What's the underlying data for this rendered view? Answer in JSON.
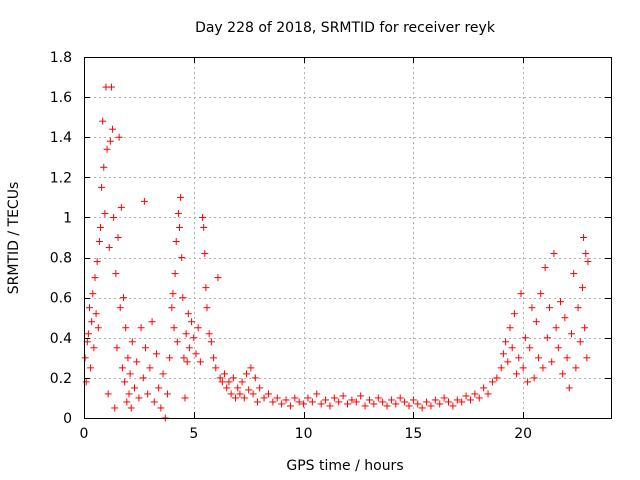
{
  "chart_data": {
    "type": "scatter",
    "title": "Day 228 of 2018, SRMTID for receiver reyk",
    "xlabel": "GPS time / hours",
    "ylabel": "SRMTID / TECUs",
    "xlim": [
      0,
      24
    ],
    "ylim": [
      0,
      1.8
    ],
    "xticks": [
      0,
      5,
      10,
      15,
      20
    ],
    "xtick_labels": [
      "0",
      "5",
      "10",
      "15",
      "20"
    ],
    "yticks": [
      0,
      0.2,
      0.4,
      0.6,
      0.8,
      1.0,
      1.2,
      1.4,
      1.6,
      1.8
    ],
    "ytick_labels": [
      "0",
      "0.2",
      "0.4",
      "0.6",
      "0.8",
      "1",
      "1.2",
      "1.4",
      "1.6",
      "1.8"
    ],
    "grid": true,
    "marker": "+",
    "marker_color": "#ff0000",
    "series": [
      {
        "name": "SRMTID",
        "points": [
          [
            0.05,
            0.3
          ],
          [
            0.1,
            0.18
          ],
          [
            0.15,
            0.38
          ],
          [
            0.2,
            0.42
          ],
          [
            0.25,
            0.55
          ],
          [
            0.3,
            0.25
          ],
          [
            0.35,
            0.48
          ],
          [
            0.4,
            0.62
          ],
          [
            0.45,
            0.35
          ],
          [
            0.5,
            0.7
          ],
          [
            0.55,
            0.52
          ],
          [
            0.6,
            0.78
          ],
          [
            0.65,
            0.45
          ],
          [
            0.7,
            0.88
          ],
          [
            0.75,
            0.95
          ],
          [
            0.8,
            1.15
          ],
          [
            0.85,
            1.48
          ],
          [
            0.9,
            1.25
          ],
          [
            0.95,
            1.02
          ],
          [
            1.0,
            1.65
          ],
          [
            1.05,
            1.34
          ],
          [
            1.1,
            0.12
          ],
          [
            1.15,
            0.85
          ],
          [
            1.2,
            1.38
          ],
          [
            1.25,
            1.65
          ],
          [
            1.3,
            1.44
          ],
          [
            1.35,
            1.0
          ],
          [
            1.4,
            0.05
          ],
          [
            1.45,
            0.72
          ],
          [
            1.5,
            0.35
          ],
          [
            1.55,
            0.9
          ],
          [
            1.6,
            1.4
          ],
          [
            1.65,
            0.55
          ],
          [
            1.7,
            1.05
          ],
          [
            1.75,
            0.25
          ],
          [
            1.8,
            0.6
          ],
          [
            1.85,
            0.18
          ],
          [
            1.9,
            0.45
          ],
          [
            1.95,
            0.08
          ],
          [
            2.0,
            0.3
          ],
          [
            2.05,
            0.12
          ],
          [
            2.1,
            0.22
          ],
          [
            2.15,
            0.05
          ],
          [
            2.2,
            0.38
          ],
          [
            2.3,
            0.15
          ],
          [
            2.4,
            0.28
          ],
          [
            2.5,
            0.1
          ],
          [
            2.6,
            0.45
          ],
          [
            2.7,
            0.2
          ],
          [
            2.75,
            1.08
          ],
          [
            2.8,
            0.35
          ],
          [
            2.9,
            0.12
          ],
          [
            3.0,
            0.25
          ],
          [
            3.1,
            0.48
          ],
          [
            3.2,
            0.08
          ],
          [
            3.3,
            0.32
          ],
          [
            3.4,
            0.15
          ],
          [
            3.5,
            0.05
          ],
          [
            3.6,
            0.22
          ],
          [
            3.7,
            0.0
          ],
          [
            3.8,
            0.12
          ],
          [
            3.9,
            0.3
          ],
          [
            4.0,
            0.55
          ],
          [
            4.05,
            0.62
          ],
          [
            4.1,
            0.45
          ],
          [
            4.15,
            0.72
          ],
          [
            4.2,
            0.88
          ],
          [
            4.25,
            0.38
          ],
          [
            4.3,
            1.02
          ],
          [
            4.35,
            0.95
          ],
          [
            4.4,
            1.1
          ],
          [
            4.45,
            0.8
          ],
          [
            4.5,
            0.6
          ],
          [
            4.55,
            0.3
          ],
          [
            4.6,
            0.1
          ],
          [
            4.65,
            0.42
          ],
          [
            4.7,
            0.28
          ],
          [
            4.75,
            0.52
          ],
          [
            4.8,
            0.35
          ],
          [
            4.9,
            0.48
          ],
          [
            5.0,
            0.4
          ],
          [
            5.1,
            0.32
          ],
          [
            5.2,
            0.45
          ],
          [
            5.3,
            0.28
          ],
          [
            5.4,
            1.0
          ],
          [
            5.45,
            0.95
          ],
          [
            5.5,
            0.82
          ],
          [
            5.55,
            0.65
          ],
          [
            5.6,
            0.55
          ],
          [
            5.7,
            0.42
          ],
          [
            5.8,
            0.38
          ],
          [
            5.9,
            0.3
          ],
          [
            6.0,
            0.25
          ],
          [
            6.1,
            0.7
          ],
          [
            6.2,
            0.2
          ],
          [
            6.3,
            0.18
          ],
          [
            6.4,
            0.22
          ],
          [
            6.5,
            0.15
          ],
          [
            6.6,
            0.18
          ],
          [
            6.7,
            0.12
          ],
          [
            6.8,
            0.2
          ],
          [
            6.9,
            0.1
          ],
          [
            7.0,
            0.15
          ],
          [
            7.1,
            0.12
          ],
          [
            7.2,
            0.18
          ],
          [
            7.3,
            0.1
          ],
          [
            7.4,
            0.22
          ],
          [
            7.5,
            0.14
          ],
          [
            7.6,
            0.25
          ],
          [
            7.7,
            0.12
          ],
          [
            7.8,
            0.2
          ],
          [
            7.9,
            0.08
          ],
          [
            8.0,
            0.15
          ],
          [
            8.2,
            0.1
          ],
          [
            8.4,
            0.12
          ],
          [
            8.6,
            0.08
          ],
          [
            8.8,
            0.1
          ],
          [
            9.0,
            0.07
          ],
          [
            9.2,
            0.09
          ],
          [
            9.4,
            0.06
          ],
          [
            9.6,
            0.1
          ],
          [
            9.8,
            0.08
          ],
          [
            10.0,
            0.07
          ],
          [
            10.2,
            0.1
          ],
          [
            10.4,
            0.08
          ],
          [
            10.6,
            0.12
          ],
          [
            10.8,
            0.07
          ],
          [
            11.0,
            0.09
          ],
          [
            11.2,
            0.06
          ],
          [
            11.4,
            0.1
          ],
          [
            11.6,
            0.08
          ],
          [
            11.8,
            0.11
          ],
          [
            12.0,
            0.07
          ],
          [
            12.2,
            0.09
          ],
          [
            12.4,
            0.08
          ],
          [
            12.6,
            0.11
          ],
          [
            12.8,
            0.06
          ],
          [
            13.0,
            0.09
          ],
          [
            13.2,
            0.07
          ],
          [
            13.4,
            0.1
          ],
          [
            13.6,
            0.08
          ],
          [
            13.8,
            0.06
          ],
          [
            14.0,
            0.09
          ],
          [
            14.2,
            0.07
          ],
          [
            14.4,
            0.1
          ],
          [
            14.6,
            0.08
          ],
          [
            14.8,
            0.06
          ],
          [
            15.0,
            0.09
          ],
          [
            15.2,
            0.07
          ],
          [
            15.4,
            0.05
          ],
          [
            15.6,
            0.08
          ],
          [
            15.8,
            0.06
          ],
          [
            16.0,
            0.09
          ],
          [
            16.2,
            0.07
          ],
          [
            16.4,
            0.1
          ],
          [
            16.6,
            0.08
          ],
          [
            16.8,
            0.06
          ],
          [
            17.0,
            0.09
          ],
          [
            17.2,
            0.08
          ],
          [
            17.4,
            0.11
          ],
          [
            17.6,
            0.09
          ],
          [
            17.8,
            0.12
          ],
          [
            18.0,
            0.1
          ],
          [
            18.2,
            0.15
          ],
          [
            18.4,
            0.12
          ],
          [
            18.6,
            0.18
          ],
          [
            18.8,
            0.2
          ],
          [
            19.0,
            0.25
          ],
          [
            19.1,
            0.32
          ],
          [
            19.2,
            0.38
          ],
          [
            19.3,
            0.28
          ],
          [
            19.4,
            0.45
          ],
          [
            19.5,
            0.35
          ],
          [
            19.6,
            0.52
          ],
          [
            19.7,
            0.22
          ],
          [
            19.8,
            0.3
          ],
          [
            19.9,
            0.62
          ],
          [
            20.0,
            0.25
          ],
          [
            20.1,
            0.4
          ],
          [
            20.2,
            0.18
          ],
          [
            20.3,
            0.35
          ],
          [
            20.4,
            0.55
          ],
          [
            20.5,
            0.2
          ],
          [
            20.6,
            0.48
          ],
          [
            20.7,
            0.3
          ],
          [
            20.8,
            0.62
          ],
          [
            20.9,
            0.25
          ],
          [
            21.0,
            0.75
          ],
          [
            21.1,
            0.4
          ],
          [
            21.2,
            0.55
          ],
          [
            21.3,
            0.28
          ],
          [
            21.4,
            0.82
          ],
          [
            21.5,
            0.45
          ],
          [
            21.6,
            0.35
          ],
          [
            21.7,
            0.58
          ],
          [
            21.8,
            0.22
          ],
          [
            21.9,
            0.5
          ],
          [
            22.0,
            0.3
          ],
          [
            22.1,
            0.15
          ],
          [
            22.2,
            0.42
          ],
          [
            22.3,
            0.72
          ],
          [
            22.4,
            0.25
          ],
          [
            22.5,
            0.55
          ],
          [
            22.6,
            0.38
          ],
          [
            22.7,
            0.65
          ],
          [
            22.75,
            0.9
          ],
          [
            22.8,
            0.45
          ],
          [
            22.85,
            0.82
          ],
          [
            22.9,
            0.3
          ],
          [
            22.95,
            0.78
          ]
        ]
      }
    ]
  }
}
